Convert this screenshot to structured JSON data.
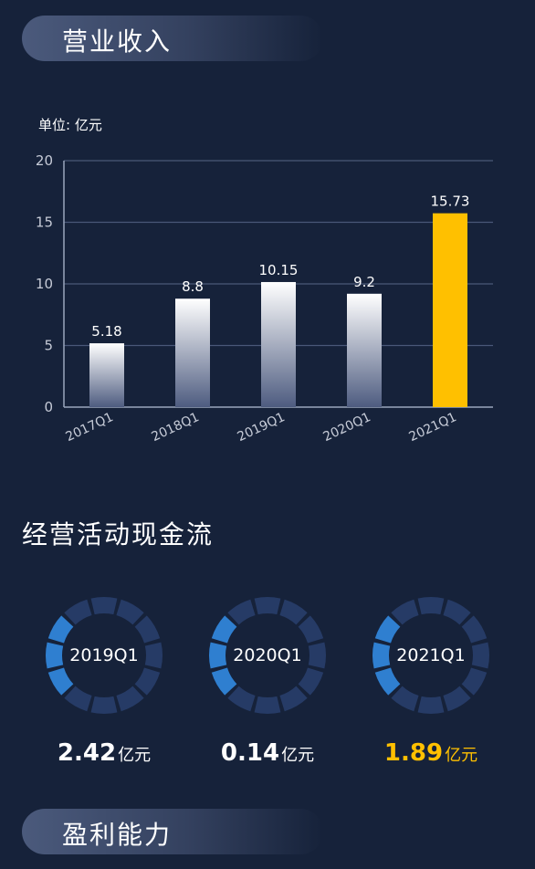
{
  "sections": {
    "revenue_title": "营业收入",
    "cashflow_title": "经营活动现金流",
    "profit_title": "盈利能力"
  },
  "chart_data": {
    "type": "bar",
    "title": "营业收入",
    "unit_label": "单位: 亿元",
    "categories": [
      "2017Q1",
      "2018Q1",
      "2019Q1",
      "2020Q1",
      "2021Q1"
    ],
    "values": [
      5.18,
      8.8,
      10.15,
      9.2,
      15.73
    ],
    "value_labels": [
      "5.18",
      "8.8",
      "10.15",
      "9.2",
      "15.73"
    ],
    "ylim": [
      0,
      20
    ],
    "yticks": [
      0,
      5,
      10,
      15,
      20
    ],
    "grid": true,
    "colors": {
      "bar_top": "#ffffff",
      "bar_bottom": "#4e5c80",
      "highlight": "#ffc000",
      "axis": "#9aa6bd",
      "grid": "#4a5878",
      "tick_text": "#c6cbd7"
    },
    "highlight_index": 4
  },
  "cashflow": {
    "segments_total": 12,
    "items": [
      {
        "period": "2019Q1",
        "value": "2.42",
        "unit": "亿元",
        "active_segments": 3,
        "color": "#ffffff"
      },
      {
        "period": "2020Q1",
        "value": "0.14",
        "unit": "亿元",
        "active_segments": 3,
        "color": "#ffffff"
      },
      {
        "period": "2021Q1",
        "value": "1.89",
        "unit": "亿元",
        "active_segments": 3,
        "color": "#ffc000"
      }
    ],
    "ring_colors": {
      "active": "#2f7fd0",
      "inactive": "#263b66"
    }
  }
}
